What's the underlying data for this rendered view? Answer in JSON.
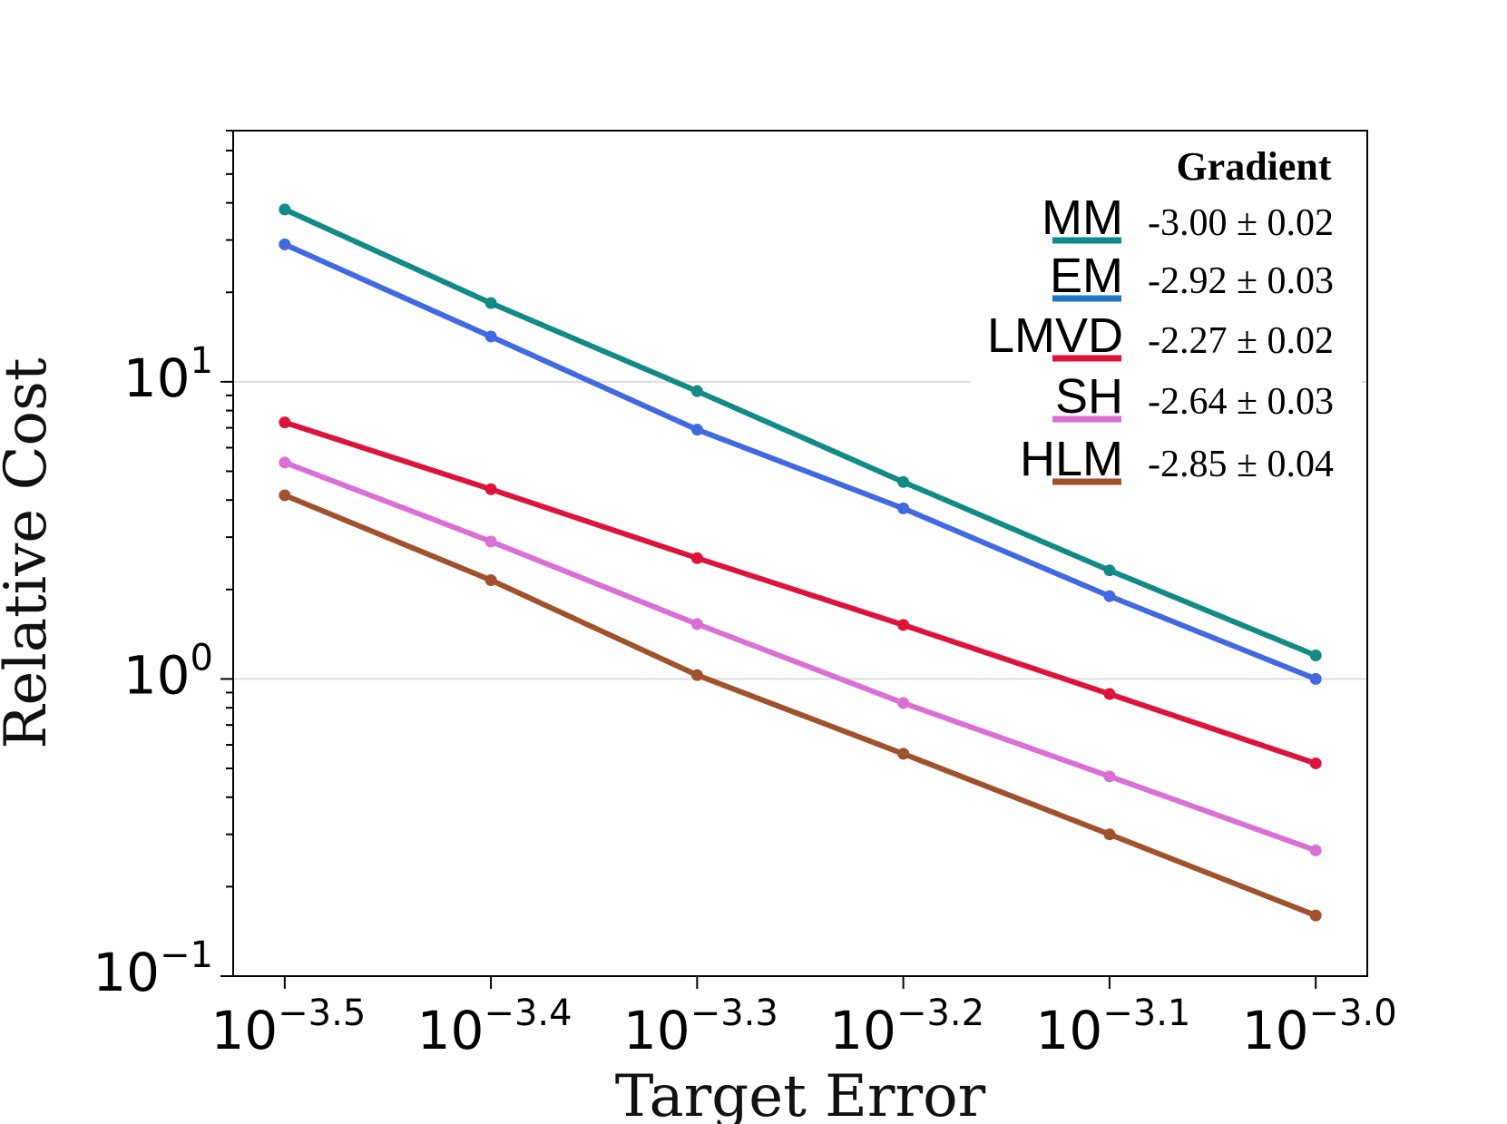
{
  "chart_data": {
    "type": "line",
    "x_scale": "log",
    "y_scale": "log",
    "xlabel": "Target Error",
    "ylabel": "Relative Cost",
    "x_exponents": [
      -3.5,
      -3.4,
      -3.3,
      -3.2,
      -3.1,
      -3.0
    ],
    "x_tick_labels": [
      {
        "base": "10",
        "exp": "−3.5"
      },
      {
        "base": "10",
        "exp": "−3.4"
      },
      {
        "base": "10",
        "exp": "−3.3"
      },
      {
        "base": "10",
        "exp": "−3.2"
      },
      {
        "base": "10",
        "exp": "−3.1"
      },
      {
        "base": "10",
        "exp": "−3.0"
      }
    ],
    "y_tick_labels": [
      {
        "base": "10",
        "exp": "1",
        "value": 10
      },
      {
        "base": "10",
        "exp": "0",
        "value": 1
      },
      {
        "base": "10",
        "exp": "−1",
        "value": 0.1
      }
    ],
    "xlim_exponent": [
      -3.525,
      -2.975
    ],
    "ylim": [
      0.1,
      70
    ],
    "grid": "horizontal-major",
    "legend": {
      "title": "Gradient",
      "position": "top-right",
      "entries": [
        {
          "name": "MM",
          "gradient": "-3.00 ± 0.02"
        },
        {
          "name": "EM",
          "gradient": "-2.92 ± 0.03"
        },
        {
          "name": "LMVD",
          "gradient": "-2.27 ± 0.02"
        },
        {
          "name": "SH",
          "gradient": "-2.64 ± 0.03"
        },
        {
          "name": "HLM",
          "gradient": "-2.85 ± 0.04"
        }
      ]
    },
    "series": [
      {
        "name": "MM",
        "color": "#128a85",
        "values": [
          38.0,
          18.4,
          9.3,
          4.6,
          2.32,
          1.2
        ]
      },
      {
        "name": "EM",
        "color": "#4169e1",
        "values": [
          29.0,
          14.2,
          6.9,
          3.75,
          1.9,
          1.0
        ]
      },
      {
        "name": "LMVD",
        "color": "#dc143c",
        "values": [
          7.3,
          4.35,
          2.55,
          1.52,
          0.89,
          0.52
        ]
      },
      {
        "name": "SH",
        "color": "#da70d6",
        "values": [
          5.35,
          2.9,
          1.53,
          0.83,
          0.47,
          0.265
        ]
      },
      {
        "name": "HLM",
        "color": "#a0522d",
        "values": [
          4.15,
          2.15,
          1.03,
          0.56,
          0.3,
          0.16
        ]
      }
    ],
    "legend_colors": [
      "#0f8b8d",
      "#1f77c4",
      "#dc143c",
      "#da70d6",
      "#a0522d"
    ]
  }
}
